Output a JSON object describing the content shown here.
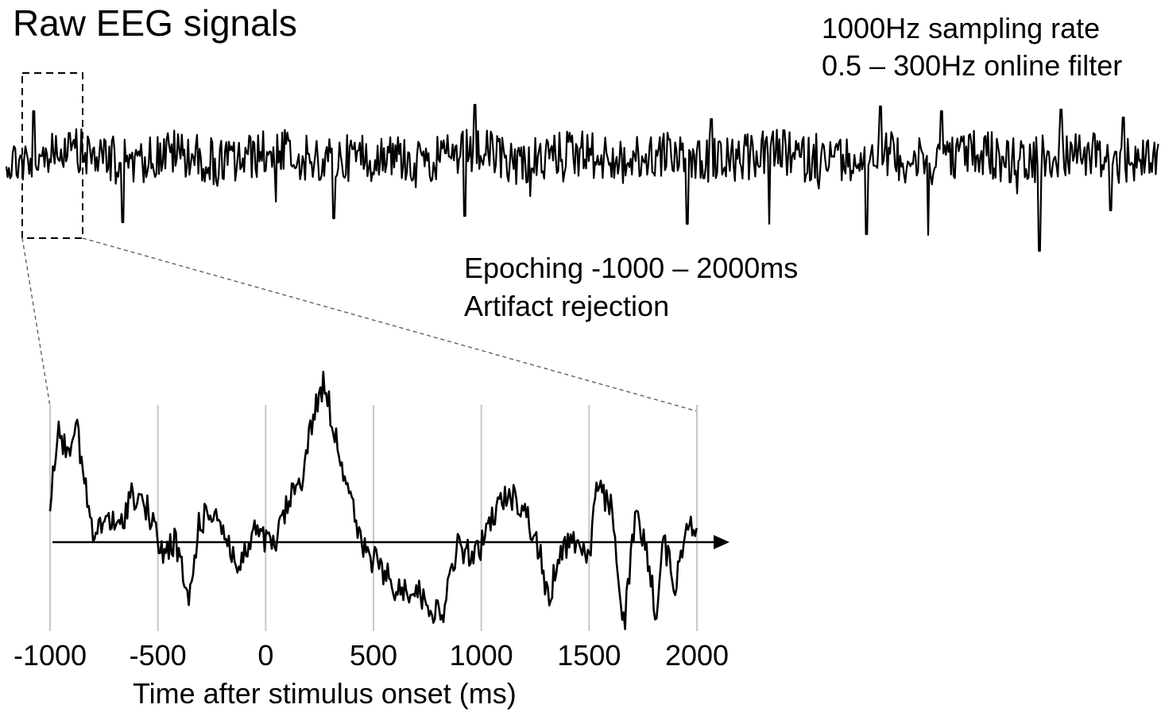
{
  "title": "Raw EEG signals",
  "acquisition": {
    "line1": "1000Hz sampling rate",
    "line2": "0.5 – 300Hz online filter"
  },
  "processing": {
    "line1": "Epoching -1000 – 2000ms",
    "line2": "Artifact rejection"
  },
  "epoch_axis": {
    "xlabel": "Time after stimulus onset (ms)",
    "ticks": [
      -1000,
      -500,
      0,
      500,
      1000,
      1500,
      2000
    ],
    "tick_labels": [
      "-1000",
      "-500",
      "0",
      "500",
      "1000",
      "1500",
      "2000"
    ],
    "xlim": [
      -1000,
      2000
    ]
  },
  "colors": {
    "signal": "#000000",
    "gridline": "#c8c8c8",
    "zoom_connector": "#555555"
  }
}
